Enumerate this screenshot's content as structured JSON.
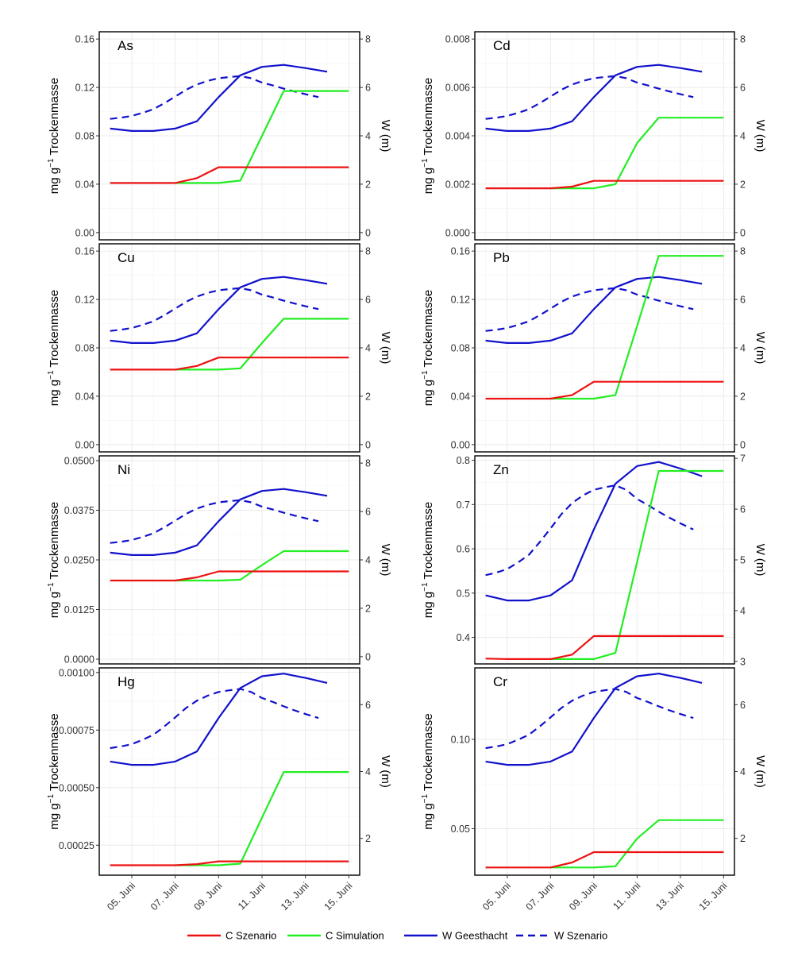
{
  "chart_data": {
    "type": "line",
    "layout": "faceted 4x2 grid, dual y-axes",
    "x_unit": "day of June",
    "x_ticks": [
      5,
      7,
      9,
      11,
      13,
      15
    ],
    "x_tick_labels": [
      "05. Juni",
      "07. Juni",
      "09. Juni",
      "11. Juni",
      "13. Juni",
      "15. Juni"
    ],
    "x_range": [
      3.5,
      15.5
    ],
    "left_axis_label": "mg g⁻¹ Trockenmasse",
    "right_axis_label": "W (m)",
    "legend": {
      "placement": "bottom",
      "entries": [
        {
          "name": "C Szenario",
          "color": "#ee1111",
          "style": "solid"
        },
        {
          "name": "C Simulation",
          "color": "#22ee22",
          "style": "solid"
        },
        {
          "name": "W Geesthacht",
          "color": "#1111cc",
          "style": "solid"
        },
        {
          "name": "W Szenario",
          "color": "#1111cc",
          "style": "dashed"
        }
      ]
    },
    "water_level": {
      "W Geesthacht": {
        "x": [
          4,
          5,
          6,
          7,
          8,
          9,
          10,
          11,
          12,
          13,
          14
        ],
        "y": [
          4.3,
          4.2,
          4.2,
          4.3,
          4.6,
          5.6,
          6.5,
          6.85,
          6.93,
          6.8,
          6.65
        ]
      },
      "W Szenario": {
        "x": [
          4,
          4.5,
          5,
          5.5,
          6,
          6.5,
          7,
          7.5,
          8,
          8.5,
          9,
          9.5,
          10,
          10.5,
          11,
          11.5,
          12,
          12.5,
          13,
          13.6
        ],
        "y": [
          4.7,
          4.75,
          4.82,
          4.95,
          5.1,
          5.35,
          5.62,
          5.9,
          6.12,
          6.27,
          6.38,
          6.43,
          6.47,
          6.38,
          6.2,
          6.08,
          5.95,
          5.83,
          5.72,
          5.6
        ]
      }
    },
    "panels": [
      {
        "element": "As",
        "ylim": [
          -0.006,
          0.166
        ],
        "yticks": [
          0.0,
          0.04,
          0.08,
          0.12,
          0.16
        ],
        "ytick_labels": [
          "0.00",
          "0.04",
          "0.08",
          "0.12",
          "0.16"
        ],
        "wlim": [
          -0.3,
          8.3
        ],
        "wticks": [
          0,
          2,
          4,
          6,
          8
        ],
        "C Szenario": {
          "x": [
            4,
            5,
            6,
            7,
            8,
            9,
            10,
            11,
            12,
            13,
            14,
            15
          ],
          "y": [
            0.041,
            0.041,
            0.041,
            0.041,
            0.045,
            0.054,
            0.054,
            0.054,
            0.054,
            0.054,
            0.054,
            0.054
          ]
        },
        "C Simulation": {
          "x": [
            7,
            8,
            9,
            10,
            11,
            12,
            13,
            14,
            15
          ],
          "y": [
            0.041,
            0.041,
            0.041,
            0.043,
            0.08,
            0.117,
            0.117,
            0.117,
            0.117
          ]
        }
      },
      {
        "element": "Cd",
        "ylim": [
          -0.0003,
          0.0083
        ],
        "yticks": [
          0.0,
          0.002,
          0.004,
          0.006,
          0.008
        ],
        "ytick_labels": [
          "0.000",
          "0.002",
          "0.004",
          "0.006",
          "0.008"
        ],
        "wlim": [
          -0.3,
          8.3
        ],
        "wticks": [
          0,
          2,
          4,
          6,
          8
        ],
        "C Szenario": {
          "x": [
            4,
            5,
            6,
            7,
            8,
            9,
            10,
            11,
            12,
            13,
            14,
            15
          ],
          "y": [
            0.00183,
            0.00183,
            0.00183,
            0.00183,
            0.0019,
            0.00214,
            0.00214,
            0.00214,
            0.00214,
            0.00214,
            0.00214,
            0.00214
          ]
        },
        "C Simulation": {
          "x": [
            7,
            8,
            9,
            10,
            11,
            12,
            13,
            14,
            15
          ],
          "y": [
            0.00183,
            0.00183,
            0.00183,
            0.002,
            0.0037,
            0.00475,
            0.00475,
            0.00475,
            0.00475
          ]
        }
      },
      {
        "element": "Cu",
        "ylim": [
          -0.006,
          0.166
        ],
        "yticks": [
          0.0,
          0.04,
          0.08,
          0.12,
          0.16
        ],
        "ytick_labels": [
          "0.00",
          "0.04",
          "0.08",
          "0.12",
          "0.16"
        ],
        "wlim": [
          -0.3,
          8.3
        ],
        "wticks": [
          0,
          2,
          4,
          6,
          8
        ],
        "C Szenario": {
          "x": [
            4,
            5,
            6,
            7,
            8,
            9,
            10,
            11,
            12,
            13,
            14,
            15
          ],
          "y": [
            0.062,
            0.062,
            0.062,
            0.062,
            0.065,
            0.072,
            0.072,
            0.072,
            0.072,
            0.072,
            0.072,
            0.072
          ]
        },
        "C Simulation": {
          "x": [
            7,
            8,
            9,
            10,
            11,
            12,
            13,
            14,
            15
          ],
          "y": [
            0.062,
            0.062,
            0.062,
            0.063,
            0.084,
            0.104,
            0.104,
            0.104,
            0.104
          ]
        }
      },
      {
        "element": "Pb",
        "ylim": [
          -0.006,
          0.166
        ],
        "yticks": [
          0.0,
          0.04,
          0.08,
          0.12,
          0.16
        ],
        "ytick_labels": [
          "0.00",
          "0.04",
          "0.08",
          "0.12",
          "0.16"
        ],
        "wlim": [
          -0.3,
          8.3
        ],
        "wticks": [
          0,
          2,
          4,
          6,
          8
        ],
        "C Szenario": {
          "x": [
            4,
            5,
            6,
            7,
            8,
            9,
            10,
            11,
            12,
            13,
            14,
            15
          ],
          "y": [
            0.038,
            0.038,
            0.038,
            0.038,
            0.041,
            0.052,
            0.052,
            0.052,
            0.052,
            0.052,
            0.052,
            0.052
          ]
        },
        "C Simulation": {
          "x": [
            7,
            8,
            9,
            10,
            11,
            12,
            13,
            14,
            15
          ],
          "y": [
            0.038,
            0.038,
            0.038,
            0.041,
            0.098,
            0.156,
            0.156,
            0.156,
            0.156
          ]
        }
      },
      {
        "element": "Ni",
        "ylim": [
          -0.0012,
          0.0512
        ],
        "yticks": [
          0.0,
          0.0125,
          0.025,
          0.0375,
          0.05
        ],
        "ytick_labels": [
          "0.0000",
          "0.0125",
          "0.0250",
          "0.0375",
          "0.0500"
        ],
        "wlim": [
          -0.3,
          8.3
        ],
        "wticks": [
          0,
          2,
          4,
          6,
          8
        ],
        "C Szenario": {
          "x": [
            4,
            5,
            6,
            7,
            8,
            9,
            10,
            11,
            12,
            13,
            14,
            15
          ],
          "y": [
            0.0198,
            0.0198,
            0.0198,
            0.0198,
            0.0206,
            0.0221,
            0.0221,
            0.0221,
            0.0221,
            0.0221,
            0.0221,
            0.0221
          ]
        },
        "C Simulation": {
          "x": [
            7,
            8,
            9,
            10,
            11,
            12,
            13,
            14,
            15
          ],
          "y": [
            0.0198,
            0.0198,
            0.0198,
            0.02,
            0.0237,
            0.0272,
            0.0272,
            0.0272,
            0.0272
          ]
        }
      },
      {
        "element": "Zn",
        "ylim": [
          0.34,
          0.81
        ],
        "yticks": [
          0.4,
          0.5,
          0.6,
          0.7,
          0.8
        ],
        "ytick_labels": [
          "0.4",
          "0.5",
          "0.6",
          "0.7",
          "0.8"
        ],
        "wlim": [
          2.95,
          7.05
        ],
        "wticks": [
          3,
          4,
          5,
          6,
          7
        ],
        "C Szenario": {
          "x": [
            4,
            5,
            6,
            7,
            8,
            9,
            10,
            11,
            12,
            13,
            14,
            15
          ],
          "y": [
            0.352,
            0.351,
            0.351,
            0.351,
            0.361,
            0.403,
            0.403,
            0.403,
            0.403,
            0.403,
            0.403,
            0.403
          ]
        },
        "C Simulation": {
          "x": [
            7,
            8,
            9,
            10,
            11,
            12,
            13,
            14,
            15
          ],
          "y": [
            0.351,
            0.351,
            0.351,
            0.365,
            0.57,
            0.776,
            0.776,
            0.776,
            0.776
          ]
        }
      },
      {
        "element": "Hg",
        "ylim": [
          0.00012,
          0.00102
        ],
        "yticks": [
          0.00025,
          0.0005,
          0.00075,
          0.001
        ],
        "ytick_labels": [
          "0.00025",
          "0.00050",
          "0.00075",
          "0.00100"
        ],
        "wlim": [
          0.9,
          7.1
        ],
        "wticks": [
          2,
          4,
          6
        ],
        "C Szenario": {
          "x": [
            4,
            5,
            6,
            7,
            8,
            9,
            10,
            11,
            12,
            13,
            14,
            15
          ],
          "y": [
            0.000163,
            0.000163,
            0.000163,
            0.000163,
            0.000168,
            0.00018,
            0.00018,
            0.00018,
            0.00018,
            0.00018,
            0.00018,
            0.00018
          ]
        },
        "C Simulation": {
          "x": [
            7,
            8,
            9,
            10,
            11,
            12,
            13,
            14,
            15
          ],
          "y": [
            0.000163,
            0.000163,
            0.000163,
            0.00017,
            0.00037,
            0.000568,
            0.000568,
            0.000568,
            0.000568
          ]
        }
      },
      {
        "element": "Cr",
        "ylim": [
          0.024,
          0.14
        ],
        "yticks": [
          0.05,
          0.1
        ],
        "ytick_labels": [
          "0.05",
          "0.10"
        ],
        "wlim": [
          0.9,
          7.1
        ],
        "wticks": [
          2,
          4,
          6
        ],
        "C Szenario": {
          "x": [
            4,
            5,
            6,
            7,
            8,
            9,
            10,
            11,
            12,
            13,
            14,
            15
          ],
          "y": [
            0.0283,
            0.0283,
            0.0283,
            0.0283,
            0.0311,
            0.0369,
            0.0369,
            0.0369,
            0.0369,
            0.0369,
            0.0369,
            0.0369
          ]
        },
        "C Simulation": {
          "x": [
            7,
            8,
            9,
            10,
            11,
            12,
            13,
            14,
            15
          ],
          "y": [
            0.0283,
            0.0283,
            0.0283,
            0.029,
            0.0445,
            0.0548,
            0.0548,
            0.0548,
            0.0548
          ]
        }
      }
    ]
  }
}
